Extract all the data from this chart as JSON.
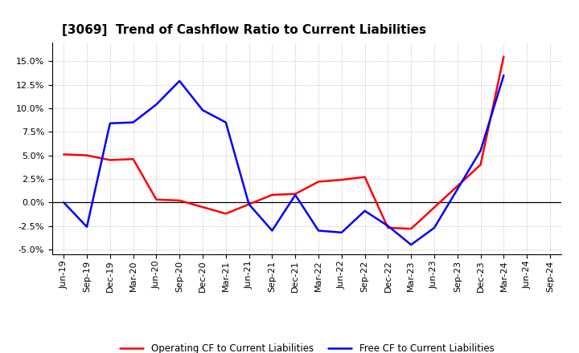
{
  "title": "[3069]  Trend of Cashflow Ratio to Current Liabilities",
  "x_labels": [
    "Jun-19",
    "Sep-19",
    "Dec-19",
    "Mar-20",
    "Jun-20",
    "Sep-20",
    "Dec-20",
    "Mar-21",
    "Jun-21",
    "Sep-21",
    "Dec-21",
    "Mar-22",
    "Jun-22",
    "Sep-22",
    "Dec-22",
    "Mar-23",
    "Jun-23",
    "Sep-23",
    "Dec-23",
    "Mar-24",
    "Jun-24",
    "Sep-24"
  ],
  "operating_cf": [
    5.1,
    5.0,
    4.5,
    4.6,
    0.3,
    0.2,
    -0.5,
    -1.2,
    -0.2,
    0.8,
    0.9,
    2.2,
    2.4,
    2.7,
    -2.7,
    -2.8,
    null,
    null,
    4.0,
    15.5,
    null,
    null
  ],
  "free_cf": [
    0.0,
    -2.6,
    8.4,
    8.5,
    10.4,
    12.9,
    9.8,
    8.5,
    -0.2,
    -3.0,
    0.8,
    -3.0,
    -3.2,
    -0.9,
    -2.5,
    -4.5,
    -2.7,
    null,
    5.5,
    13.5,
    null,
    null
  ],
  "operating_color": "#ff0000",
  "free_color": "#0000ff",
  "ylim": [
    -5.5,
    17.0
  ],
  "yticks": [
    -5.0,
    -2.5,
    0.0,
    2.5,
    5.0,
    7.5,
    10.0,
    12.5,
    15.0
  ],
  "background_color": "#ffffff",
  "grid_color": "#b0b0b0",
  "title_fontsize": 11,
  "legend_fontsize": 8.5,
  "tick_fontsize": 8
}
